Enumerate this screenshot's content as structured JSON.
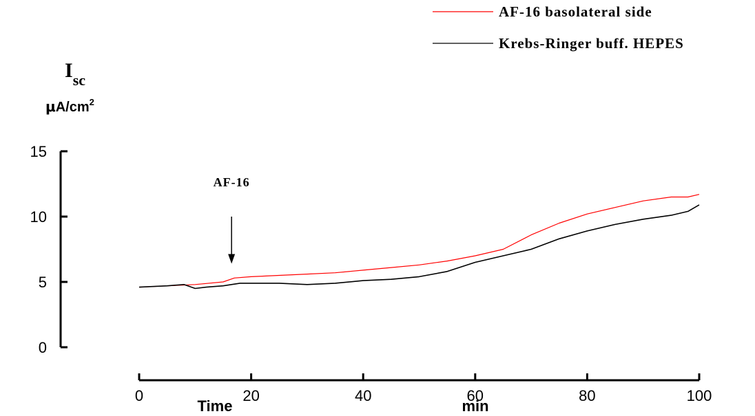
{
  "chart_data": {
    "type": "line",
    "ylabel": {
      "main": "I",
      "subscript": "sc",
      "unit_prefix": "μ",
      "unit": "A/cm",
      "unit_superscript": "2"
    },
    "xlabel": {
      "quantity": "Time",
      "unit": "min"
    },
    "xlim": [
      0,
      100
    ],
    "ylim": [
      0,
      15
    ],
    "xticks": [
      0,
      20,
      40,
      60,
      80,
      100
    ],
    "yticks": [
      0,
      5,
      10,
      15
    ],
    "grid": false,
    "legend_position": "top-right",
    "annotation": {
      "text": "AF-16",
      "x": 16.5,
      "arrow_from_y": 10,
      "arrow_to_y": 6.5
    },
    "series": [
      {
        "name": "AF-16 basolateral side",
        "color": "#ff0000",
        "x": [
          0,
          5,
          10,
          15,
          17,
          20,
          25,
          30,
          35,
          40,
          45,
          50,
          55,
          60,
          65,
          70,
          75,
          80,
          85,
          90,
          95,
          98,
          100
        ],
        "y": [
          4.6,
          4.7,
          4.8,
          5.0,
          5.3,
          5.4,
          5.5,
          5.6,
          5.7,
          5.9,
          6.1,
          6.3,
          6.6,
          7.0,
          7.5,
          8.6,
          9.5,
          10.2,
          10.7,
          11.2,
          11.5,
          11.5,
          11.7
        ]
      },
      {
        "name": "Krebs-Ringer buff. HEPES",
        "color": "#000000",
        "x": [
          0,
          5,
          8,
          10,
          12,
          15,
          18,
          20,
          25,
          30,
          35,
          40,
          45,
          50,
          55,
          60,
          65,
          70,
          75,
          80,
          85,
          90,
          95,
          98,
          100
        ],
        "y": [
          4.6,
          4.7,
          4.8,
          4.5,
          4.6,
          4.7,
          4.9,
          4.9,
          4.9,
          4.8,
          4.9,
          5.1,
          5.2,
          5.4,
          5.8,
          6.5,
          7.0,
          7.5,
          8.3,
          8.9,
          9.4,
          9.8,
          10.1,
          10.4,
          10.9
        ]
      }
    ]
  }
}
